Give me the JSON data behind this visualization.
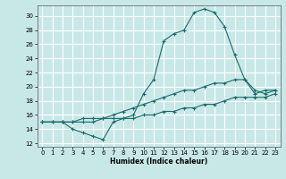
{
  "xlabel": "Humidex (Indice chaleur)",
  "background_color": "#c8e8e8",
  "grid_color": "#ffffff",
  "line_color": "#1a6b6b",
  "xlim": [
    -0.5,
    23.5
  ],
  "ylim": [
    11.5,
    31.5
  ],
  "xticks": [
    0,
    1,
    2,
    3,
    4,
    5,
    6,
    7,
    8,
    9,
    10,
    11,
    12,
    13,
    14,
    15,
    16,
    17,
    18,
    19,
    20,
    21,
    22,
    23
  ],
  "yticks": [
    12,
    14,
    16,
    18,
    20,
    22,
    24,
    26,
    28,
    30
  ],
  "line1_x": [
    0,
    1,
    2,
    3,
    4,
    5,
    6,
    7,
    8,
    9,
    10,
    11,
    12,
    13,
    14,
    15,
    16,
    17,
    18,
    19,
    20,
    21,
    22,
    23
  ],
  "line1_y": [
    15.0,
    15.0,
    15.0,
    14.0,
    13.5,
    13.0,
    12.5,
    15.0,
    15.5,
    16.0,
    19.0,
    21.0,
    26.5,
    27.5,
    28.0,
    30.5,
    31.0,
    30.5,
    28.5,
    24.5,
    21.0,
    19.5,
    19.0,
    19.5
  ],
  "line2_x": [
    0,
    1,
    2,
    3,
    4,
    5,
    6,
    7,
    8,
    9,
    10,
    11,
    12,
    13,
    14,
    15,
    16,
    17,
    18,
    19,
    20,
    21,
    22,
    23
  ],
  "line2_y": [
    15.0,
    15.0,
    15.0,
    15.0,
    15.5,
    15.5,
    15.5,
    16.0,
    16.5,
    17.0,
    17.5,
    18.0,
    18.5,
    19.0,
    19.5,
    19.5,
    20.0,
    20.5,
    20.5,
    21.0,
    21.0,
    19.0,
    19.5,
    19.5
  ],
  "line3_x": [
    0,
    1,
    2,
    3,
    4,
    5,
    6,
    7,
    8,
    9,
    10,
    11,
    12,
    13,
    14,
    15,
    16,
    17,
    18,
    19,
    20,
    21,
    22,
    23
  ],
  "line3_y": [
    15.0,
    15.0,
    15.0,
    15.0,
    15.0,
    15.0,
    15.5,
    15.5,
    15.5,
    15.5,
    16.0,
    16.0,
    16.5,
    16.5,
    17.0,
    17.0,
    17.5,
    17.5,
    18.0,
    18.5,
    18.5,
    18.5,
    18.5,
    19.0
  ]
}
